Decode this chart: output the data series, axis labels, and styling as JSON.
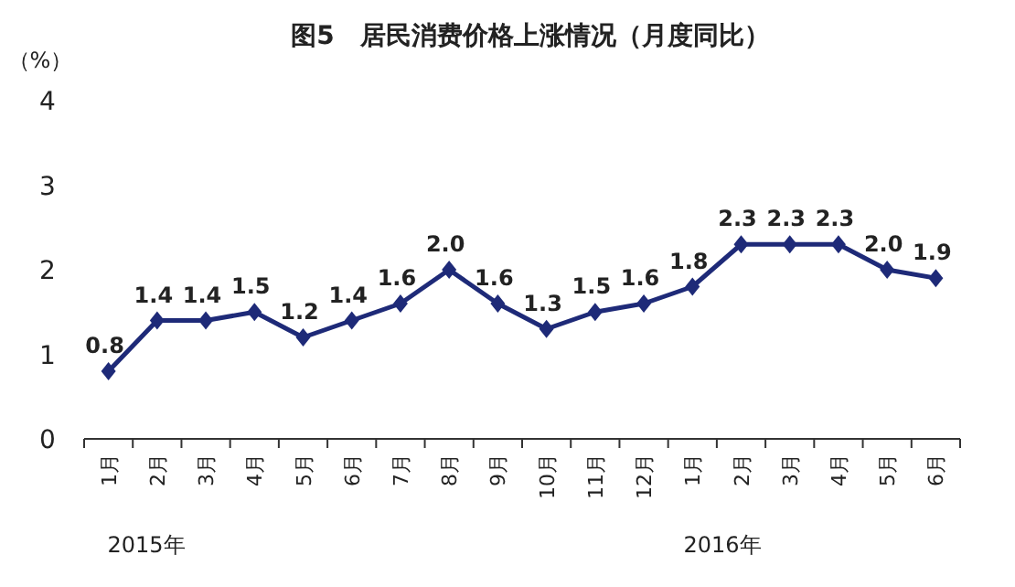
{
  "chart_data": {
    "type": "line",
    "title": "图5　居民消费价格上涨情况（月度同比）",
    "ylabel": "（%）",
    "categories": [
      "1月",
      "2月",
      "3月",
      "4月",
      "5月",
      "6月",
      "7月",
      "8月",
      "9月",
      "10月",
      "11月",
      "12月",
      "1月",
      "2月",
      "3月",
      "4月",
      "5月",
      "6月"
    ],
    "values": [
      0.8,
      1.4,
      1.4,
      1.5,
      1.2,
      1.4,
      1.6,
      2.0,
      1.6,
      1.3,
      1.5,
      1.6,
      1.8,
      2.3,
      2.3,
      2.3,
      2.0,
      1.9
    ],
    "value_labels": [
      "0.8",
      "1.4",
      "1.4",
      "1.5",
      "1.2",
      "1.4",
      "1.6",
      "2.0",
      "1.6",
      "1.3",
      "1.5",
      "1.6",
      "1.8",
      "2.3",
      "2.3",
      "2.3",
      "2.0",
      "1.9"
    ],
    "color": "#1e2a78",
    "ylim": [
      0,
      4
    ],
    "yticks": [
      0,
      1,
      2,
      3,
      4
    ],
    "marker": "diamond",
    "annotations": [
      "2015年",
      "2016年"
    ]
  }
}
